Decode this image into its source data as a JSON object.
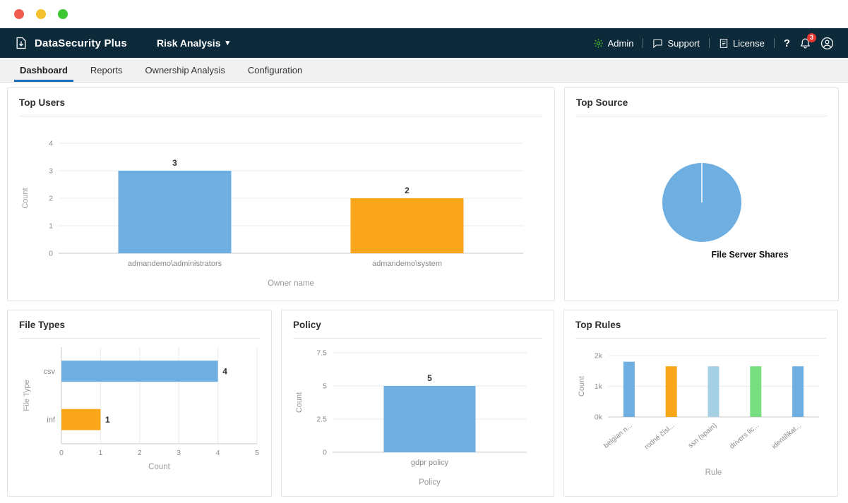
{
  "window": {
    "dot_names": [
      "close",
      "minimize",
      "maximize"
    ]
  },
  "navbar": {
    "brand": "DataSecurity Plus",
    "module": {
      "label": "Risk Analysis"
    },
    "admin_label": "Admin",
    "support_label": "Support",
    "license_label": "License",
    "help_label": "?",
    "notification_count": "3"
  },
  "tabs": [
    {
      "label": "Dashboard",
      "active": true
    },
    {
      "label": "Reports",
      "active": false
    },
    {
      "label": "Ownership Analysis",
      "active": false
    },
    {
      "label": "Configuration",
      "active": false
    }
  ],
  "colors": {
    "navbar_bg": "#0c2a3a",
    "tab_active_underline": "#1e6fba",
    "accent_blue": "#6EAEE1",
    "accent_orange": "#F9A61A",
    "accent_light_blue": "#A6D0E4",
    "accent_green": "#77DF7F",
    "admin_icon_green": "#43B02A",
    "badge_red": "#e6382e"
  },
  "chart_data": [
    {
      "id": "top_users",
      "type": "bar",
      "title": "Top Users",
      "categories": [
        "admandemo\\administrators",
        "admandemo\\system"
      ],
      "values": [
        3,
        2
      ],
      "colors": [
        "#6EAEE1",
        "#F9A61A"
      ],
      "xlabel": "Owner name",
      "ylabel": "Count",
      "ylim": [
        0,
        4
      ],
      "yticks": [
        0,
        1,
        2,
        3,
        4
      ],
      "ytick_labels": [
        "0",
        "1",
        "2",
        "3",
        "4"
      ],
      "show_values": true,
      "legend_position": "none",
      "grid": true
    },
    {
      "id": "top_source",
      "type": "pie",
      "title": "Top Source",
      "slices": [
        {
          "label": "File Server Shares",
          "value": 1,
          "color": "#6EAEE1"
        }
      ],
      "center_label": "File Server Shares"
    },
    {
      "id": "file_types",
      "type": "hbar",
      "title": "File Types",
      "categories": [
        "csv",
        "inf"
      ],
      "values": [
        4,
        1
      ],
      "colors": [
        "#6EAEE1",
        "#F9A61A"
      ],
      "xlabel": "Count",
      "ylabel": "File Type",
      "xlim": [
        0,
        5
      ],
      "xticks": [
        0,
        1,
        2,
        3,
        4,
        5
      ],
      "xtick_labels": [
        "0",
        "1",
        "2",
        "3",
        "4",
        "5"
      ],
      "show_values": true,
      "grid": true
    },
    {
      "id": "policy",
      "type": "bar",
      "title": "Policy",
      "categories": [
        "gdpr policy"
      ],
      "values": [
        5
      ],
      "colors": [
        "#6EAEE1"
      ],
      "xlabel": "Policy",
      "ylabel": "Count",
      "ylim": [
        0,
        7.5
      ],
      "yticks": [
        0,
        2.5,
        5,
        7.5
      ],
      "ytick_labels": [
        "0",
        "2.5",
        "5",
        "7.5"
      ],
      "show_values": true,
      "grid": true
    },
    {
      "id": "top_rules",
      "type": "bar",
      "title": "Top Rules",
      "categories": [
        "belgian n...",
        "rodné čísl...",
        "ssn (spain)",
        "drivers lic...",
        "identifikat..."
      ],
      "values": [
        1800,
        1650,
        1650,
        1650,
        1650
      ],
      "colors": [
        "#6EAEE1",
        "#F9A61A",
        "#A6D0E4",
        "#77DF7F",
        "#6EAEE1"
      ],
      "xlabel": "Rule",
      "ylabel": "Count",
      "ylim": [
        0,
        2000
      ],
      "yticks": [
        0,
        1000,
        2000
      ],
      "ytick_labels": [
        "0k",
        "1k",
        "2k"
      ],
      "show_values": false,
      "rotate_labels": true,
      "grid": true
    }
  ]
}
